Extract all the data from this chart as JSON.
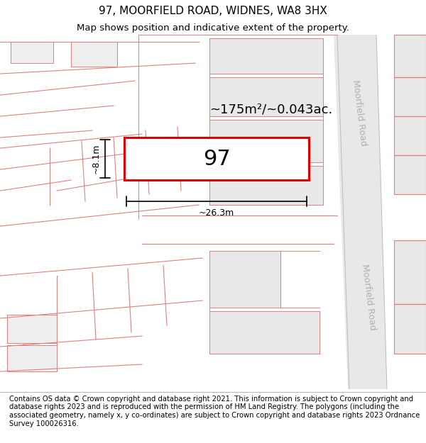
{
  "title": "97, MOORFIELD ROAD, WIDNES, WA8 3HX",
  "subtitle": "Map shows position and indicative extent of the property.",
  "footer": "Contains OS data © Crown copyright and database right 2021. This information is subject to Crown copyright and database rights 2023 and is reproduced with the permission of HM Land Registry. The polygons (including the associated geometry, namely x, y co-ordinates) are subject to Crown copyright and database rights 2023 Ordnance Survey 100026316.",
  "road_label": "Moorfield Road",
  "property_label": "97",
  "area_label": "~175m²/~0.043ac.",
  "dim_width": "~26.3m",
  "dim_height": "~8.1m",
  "title_fontsize": 11,
  "subtitle_fontsize": 9.5,
  "footer_fontsize": 7.2,
  "plot_line_color": "#e00000",
  "plot_fill_color": "#f0f0f0",
  "neighbor_fill": "#e8e8e8",
  "road_fill": "#e0e0e0",
  "pink_line_color": "#e08080",
  "road_line_color": "#cccccc",
  "map_bg": "#fafafa"
}
